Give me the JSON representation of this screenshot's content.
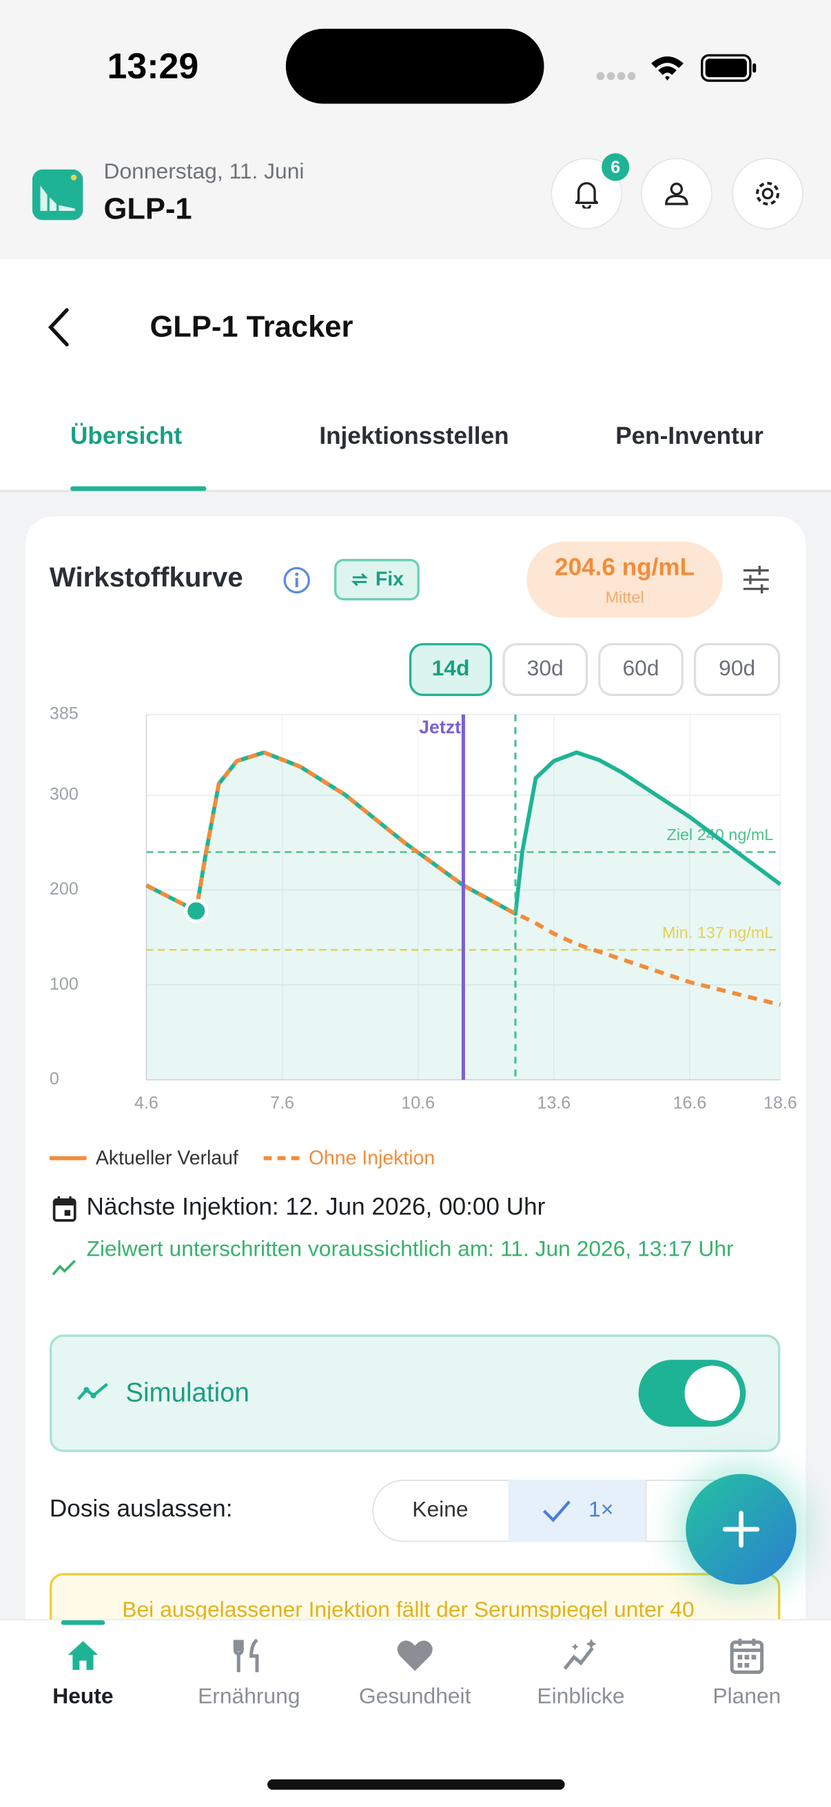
{
  "status_bar": {
    "time": "13:29"
  },
  "header": {
    "date": "Donnerstag, 11. Juni",
    "title": "GLP-1",
    "notification_count": "6"
  },
  "nav": {
    "title": "GLP-1 Tracker"
  },
  "tabs": {
    "items": [
      "Übersicht",
      "Injektionsstellen",
      "Pen-Inventur"
    ],
    "active": 0
  },
  "card": {
    "title": "Wirkstoffkurve",
    "badge": "Fix",
    "stat_value": "204.6 ng/mL",
    "stat_label": "Mittel",
    "ranges": [
      "14d",
      "30d",
      "60d",
      "90d"
    ],
    "active_range": 0
  },
  "chart_data": {
    "type": "line",
    "x": [
      4.6,
      5.7,
      5.9,
      6.2,
      6.6,
      7.2,
      8.0,
      9.0,
      10.3,
      11.6,
      12.75,
      12.9,
      13.2,
      13.6,
      14.1,
      14.6,
      15.1,
      16.6,
      18.6
    ],
    "series": [
      {
        "name": "Aktueller Verlauf",
        "color": "#1fb396",
        "legend_color": "#f28c3a",
        "style": "solid",
        "fill": true,
        "values": [
          205,
          178,
          235,
          312,
          336,
          345,
          330,
          300,
          250,
          205,
          175,
          240,
          318,
          336,
          345,
          337,
          324,
          277,
          206
        ]
      },
      {
        "name": "Ohne Injektion",
        "color": "#f28c3a",
        "style": "dashed",
        "values": [
          205,
          178,
          235,
          312,
          336,
          345,
          330,
          300,
          250,
          205,
          175,
          172,
          165,
          154,
          143,
          135,
          127,
          103,
          79
        ]
      }
    ],
    "xlim": [
      4.6,
      18.6
    ],
    "xticks": [
      4.6,
      7.6,
      10.6,
      13.6,
      16.6,
      18.6
    ],
    "ylim": [
      0,
      385
    ],
    "yticks": [
      0,
      100,
      200,
      300,
      385
    ],
    "grid": true,
    "hlines": [
      {
        "y": 240,
        "label": "Ziel 240 ng/mL",
        "color": "#4cc28a"
      },
      {
        "y": 137,
        "label": "Min. 137 ng/mL",
        "color": "#e6cf55"
      }
    ],
    "vlines": [
      {
        "x": 11.6,
        "label": "Jetzt",
        "color": "#7b5fd6",
        "style": "solid"
      },
      {
        "x": 12.75,
        "color": "#3fbf8f",
        "style": "dashed"
      }
    ],
    "dose_points": [
      {
        "x": 5.7,
        "y": 178
      }
    ]
  },
  "info": {
    "next_injection": "Nächste Injektion: 12. Jun 2026, 00:00 Uhr",
    "target_warning": "Zielwert unterschritten voraussichtlich am: 11. Jun 2026, 13:17 Uhr"
  },
  "simulation": {
    "label": "Simulation",
    "enabled": true
  },
  "dose_skip": {
    "label": "Dosis auslassen:",
    "options": [
      "Keine",
      "1×"
    ],
    "active": 1
  },
  "alert": {
    "text": "Bei ausgelassener Injektion fällt der Serumspiegel unter 40"
  },
  "bottom_nav": {
    "items": [
      "Heute",
      "Ernährung",
      "Gesundheit",
      "Einblicke",
      "Planen"
    ],
    "active": 0
  }
}
